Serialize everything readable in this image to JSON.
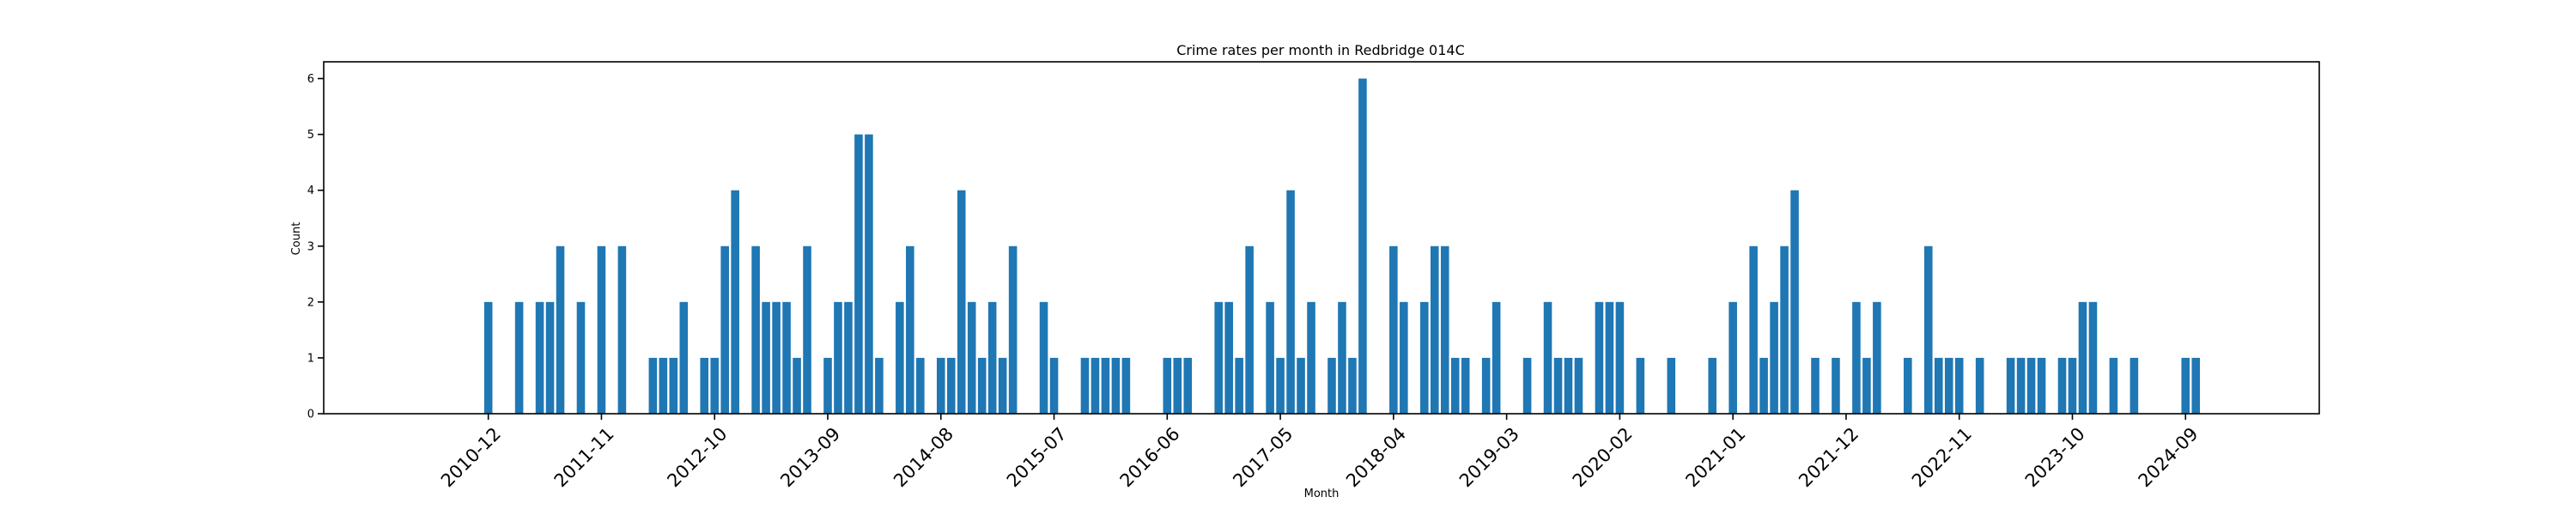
{
  "chart_data": {
    "type": "bar",
    "title": "Crime rates per month in Redbridge 014C",
    "xlabel": "Month",
    "ylabel": "Count",
    "ylim": [
      0,
      6.3
    ],
    "yticks": [
      "0",
      "1",
      "2",
      "3",
      "4",
      "5",
      "6"
    ],
    "xlim": [
      "2009-08",
      "2025-10"
    ],
    "xtick_labels": [
      "2010-12",
      "2011-11",
      "2012-10",
      "2013-09",
      "2014-08",
      "2015-07",
      "2016-06",
      "2017-05",
      "2018-04",
      "2019-03",
      "2020-02",
      "2021-01",
      "2021-12",
      "2022-11",
      "2023-10",
      "2024-09"
    ],
    "grid": false,
    "legend": "none",
    "bar_color": "#1f77b4",
    "x": [
      "2010-12",
      "2011-03",
      "2011-05",
      "2011-06",
      "2011-07",
      "2011-09",
      "2011-11",
      "2012-01",
      "2012-04",
      "2012-05",
      "2012-06",
      "2012-07",
      "2012-09",
      "2012-10",
      "2012-11",
      "2012-12",
      "2013-02",
      "2013-03",
      "2013-04",
      "2013-05",
      "2013-06",
      "2013-07",
      "2013-09",
      "2013-10",
      "2013-11",
      "2013-12",
      "2014-01",
      "2014-02",
      "2014-04",
      "2014-05",
      "2014-06",
      "2014-08",
      "2014-09",
      "2014-10",
      "2014-11",
      "2014-12",
      "2015-01",
      "2015-02",
      "2015-03",
      "2015-06",
      "2015-07",
      "2015-10",
      "2015-11",
      "2015-12",
      "2016-01",
      "2016-02",
      "2016-06",
      "2016-07",
      "2016-08",
      "2016-11",
      "2016-12",
      "2017-01",
      "2017-02",
      "2017-04",
      "2017-05",
      "2017-06",
      "2017-07",
      "2017-08",
      "2017-10",
      "2017-11",
      "2017-12",
      "2018-01",
      "2018-04",
      "2018-05",
      "2018-07",
      "2018-08",
      "2018-09",
      "2018-10",
      "2018-11",
      "2019-01",
      "2019-02",
      "2019-05",
      "2019-07",
      "2019-08",
      "2019-09",
      "2019-10",
      "2019-12",
      "2020-01",
      "2020-02",
      "2020-04",
      "2020-07",
      "2020-11",
      "2021-01",
      "2021-03",
      "2021-04",
      "2021-05",
      "2021-06",
      "2021-07",
      "2021-09",
      "2021-11",
      "2022-01",
      "2022-02",
      "2022-03",
      "2022-06",
      "2022-08",
      "2022-09",
      "2022-10",
      "2022-11",
      "2023-01",
      "2023-04",
      "2023-05",
      "2023-06",
      "2023-07",
      "2023-09",
      "2023-10",
      "2023-11",
      "2023-12",
      "2024-02",
      "2024-04",
      "2024-09",
      "2024-10"
    ],
    "values": [
      2,
      2,
      2,
      2,
      3,
      2,
      3,
      3,
      1,
      1,
      1,
      2,
      1,
      1,
      3,
      4,
      3,
      2,
      2,
      2,
      1,
      3,
      1,
      2,
      2,
      5,
      5,
      1,
      2,
      3,
      1,
      1,
      1,
      4,
      2,
      1,
      2,
      1,
      3,
      2,
      1,
      1,
      1,
      1,
      1,
      1,
      1,
      1,
      1,
      2,
      2,
      1,
      3,
      2,
      1,
      4,
      1,
      2,
      1,
      2,
      1,
      6,
      3,
      2,
      2,
      3,
      3,
      1,
      1,
      1,
      2,
      1,
      2,
      1,
      1,
      1,
      2,
      2,
      2,
      1,
      1,
      1,
      2,
      3,
      1,
      2,
      3,
      4,
      1,
      1,
      2,
      1,
      2,
      1,
      3,
      1,
      1,
      1,
      1,
      1,
      1,
      1,
      1,
      1,
      1,
      2,
      2,
      1,
      1,
      1,
      1
    ]
  }
}
